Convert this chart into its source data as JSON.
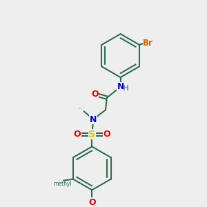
{
  "background_color": "#eeeeee",
  "bond_color": "#2d6e4e",
  "bond_width": 1.5,
  "atom_colors": {
    "N": "#0000ee",
    "O": "#ee0000",
    "S": "#ddcc00",
    "Br": "#cc6600",
    "H": "#779aaa",
    "C_bond": "#2d6e4e"
  },
  "font_size_atom": 9,
  "font_size_small": 7.5
}
